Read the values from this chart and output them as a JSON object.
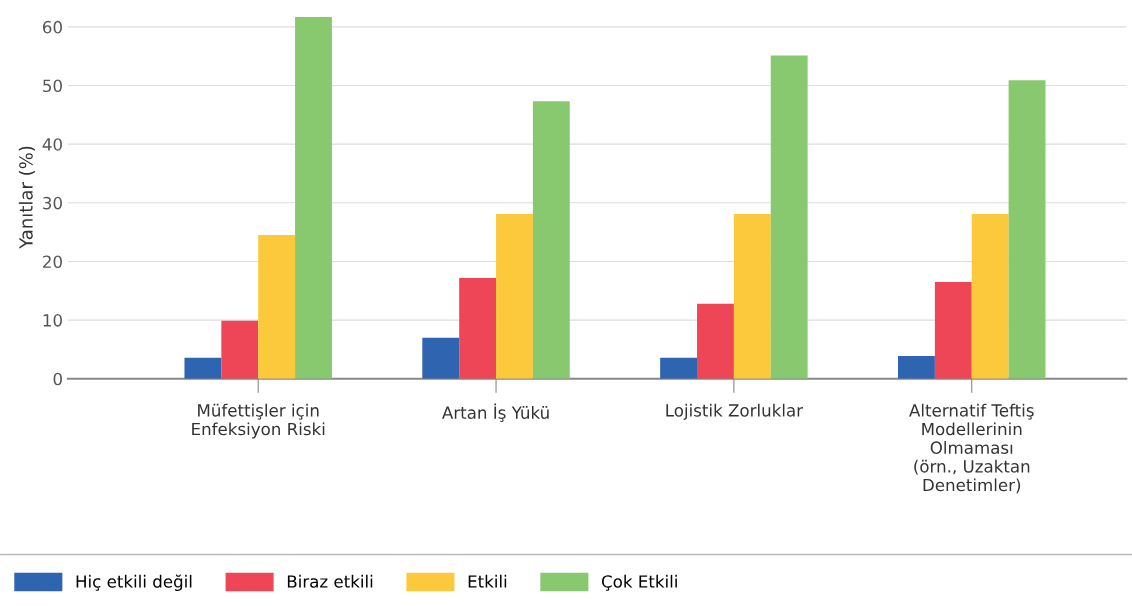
{
  "chart_data": {
    "type": "bar",
    "ylabel": "Yanıtlar (%)",
    "categories": [
      "Müfettişler için\nEnfeksiyon Riski",
      "Artan İş Yükü",
      "Lojistik Zorluklar",
      "Alternatif Teftiş\nModellerinin\nOlmaması\n(örn., Uzaktan\nDenetimler)"
    ],
    "series": [
      {
        "name": "Hiç etkili değil",
        "color": "#2f64b0",
        "values": [
          3.6,
          7.0,
          3.6,
          3.9
        ]
      },
      {
        "name": "Biraz etkili",
        "color": "#ee4656",
        "values": [
          9.9,
          17.2,
          12.8,
          16.5
        ]
      },
      {
        "name": "Etkili",
        "color": "#fdc93c",
        "values": [
          24.5,
          28.1,
          28.1,
          28.1
        ]
      },
      {
        "name": "Çok Etkili",
        "color": "#88c96f",
        "values": [
          61.7,
          47.3,
          55.1,
          50.9
        ]
      }
    ],
    "ylim": [
      0,
      62
    ],
    "yticks": [
      0,
      10,
      20,
      30,
      40,
      50,
      60
    ],
    "grid": "y",
    "legend": "bottom left"
  }
}
